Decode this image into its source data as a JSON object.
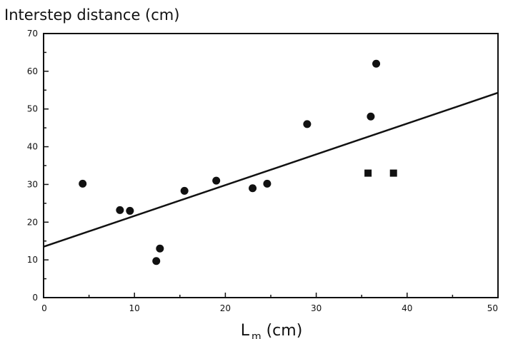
{
  "chart_data": {
    "type": "scatter",
    "ylabel": "Interstep distance (cm)",
    "xlabel": {
      "main": "L",
      "subscript": "m",
      "unit": " (cm)"
    },
    "xlim": [
      0,
      50
    ],
    "ylim": [
      0,
      70
    ],
    "x_ticks": [
      0,
      10,
      20,
      30,
      40,
      50
    ],
    "y_ticks": [
      0,
      10,
      20,
      30,
      40,
      50,
      60,
      70
    ],
    "grid": false,
    "series": [
      {
        "marker": "circle",
        "points": [
          {
            "x": 4.3,
            "y": 30.2
          },
          {
            "x": 8.4,
            "y": 23.2
          },
          {
            "x": 9.5,
            "y": 23.0
          },
          {
            "x": 12.4,
            "y": 9.7
          },
          {
            "x": 12.8,
            "y": 13.0
          },
          {
            "x": 15.5,
            "y": 28.3
          },
          {
            "x": 19.0,
            "y": 31.0
          },
          {
            "x": 23.0,
            "y": 29.0
          },
          {
            "x": 24.6,
            "y": 30.2
          },
          {
            "x": 29.0,
            "y": 46.0
          },
          {
            "x": 36.0,
            "y": 48.0
          },
          {
            "x": 36.6,
            "y": 62.0
          }
        ]
      },
      {
        "marker": "square",
        "points": [
          {
            "x": 35.7,
            "y": 33.0
          },
          {
            "x": 38.5,
            "y": 33.0
          }
        ]
      }
    ],
    "regression_line": {
      "x": [
        0,
        50
      ],
      "y": [
        13.5,
        54.3
      ]
    }
  }
}
